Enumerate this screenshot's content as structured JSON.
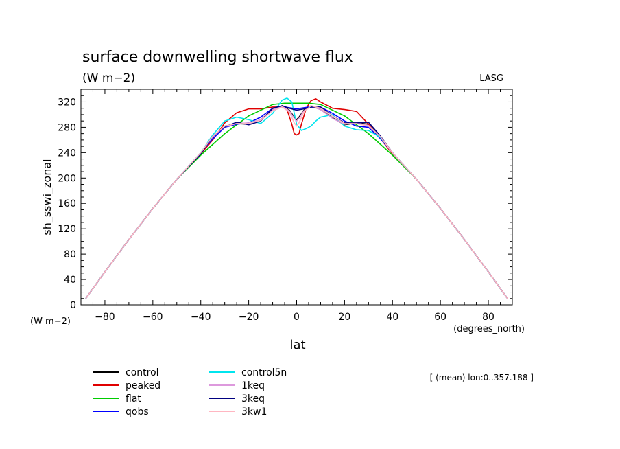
{
  "chart_data": {
    "type": "line",
    "title": "surface downwelling shortwave flux",
    "units": "(W m−2)",
    "source_label": "LASG",
    "xlabel": "lat",
    "ylabel": "sh_sswi_zonal",
    "y_units": "(W m−2)",
    "x_units": "(degrees_north)",
    "note": "[ (mean) lon:0..357.188 ]",
    "xlim": [
      -90,
      90
    ],
    "ylim": [
      0,
      340
    ],
    "x_ticks": [
      -80,
      -60,
      -40,
      -20,
      0,
      20,
      40,
      60,
      80
    ],
    "x_tick_labels": [
      "−80",
      "−60",
      "−40",
      "−20",
      "0",
      "20",
      "40",
      "60",
      "80"
    ],
    "y_ticks": [
      0,
      40,
      80,
      120,
      160,
      200,
      240,
      280,
      320
    ],
    "y_tick_labels": [
      "0",
      "40",
      "80",
      "120",
      "160",
      "200",
      "240",
      "280",
      "320"
    ],
    "grid": false,
    "legend_position": "below",
    "series": [
      {
        "name": "control",
        "color": "#000000",
        "x": [
          -88,
          -80,
          -70,
          -60,
          -50,
          -40,
          -35,
          -30,
          -25,
          -20,
          -15,
          -10,
          -6,
          -3,
          -1,
          0,
          1,
          3,
          6,
          10,
          15,
          20,
          25,
          30,
          35,
          40,
          50,
          60,
          70,
          80,
          88
        ],
        "y": [
          10,
          52,
          103,
          152,
          198,
          238,
          265,
          282,
          286,
          285,
          292,
          308,
          314,
          307,
          296,
          292,
          296,
          307,
          314,
          308,
          295,
          284,
          287,
          285,
          265,
          238,
          198,
          152,
          103,
          52,
          10
        ]
      },
      {
        "name": "peaked",
        "color": "#e00000",
        "x": [
          -88,
          -80,
          -70,
          -60,
          -50,
          -40,
          -35,
          -30,
          -25,
          -20,
          -15,
          -10,
          -6,
          -4,
          -2,
          -1,
          0,
          1,
          2,
          4,
          6,
          8,
          10,
          15,
          20,
          25,
          30,
          35,
          40,
          50,
          60,
          70,
          80,
          88
        ],
        "y": [
          10,
          52,
          103,
          152,
          198,
          238,
          260,
          287,
          303,
          309,
          309,
          312,
          312,
          308,
          285,
          270,
          268,
          270,
          285,
          310,
          322,
          325,
          320,
          310,
          308,
          305,
          285,
          262,
          238,
          198,
          152,
          103,
          52,
          10
        ]
      },
      {
        "name": "flat",
        "color": "#00cc00",
        "x": [
          -88,
          -80,
          -70,
          -60,
          -50,
          -40,
          -30,
          -20,
          -10,
          -5,
          0,
          5,
          10,
          20,
          30,
          40,
          50,
          60,
          70,
          80,
          88
        ],
        "y": [
          10,
          52,
          103,
          152,
          198,
          236,
          270,
          298,
          316,
          318,
          318,
          318,
          316,
          298,
          270,
          236,
          198,
          152,
          103,
          52,
          10
        ]
      },
      {
        "name": "qobs",
        "color": "#0000ff",
        "x": [
          -88,
          -80,
          -70,
          -60,
          -50,
          -40,
          -35,
          -30,
          -25,
          -20,
          -15,
          -10,
          -5,
          0,
          5,
          10,
          15,
          20,
          25,
          30,
          35,
          40,
          50,
          60,
          70,
          80,
          88
        ],
        "y": [
          10,
          52,
          103,
          152,
          198,
          240,
          262,
          280,
          285,
          287,
          296,
          310,
          312,
          309,
          312,
          312,
          302,
          290,
          282,
          280,
          262,
          240,
          198,
          152,
          103,
          52,
          10
        ]
      },
      {
        "name": "control5n",
        "color": "#00e5ee",
        "x": [
          -88,
          -80,
          -70,
          -60,
          -50,
          -40,
          -35,
          -30,
          -25,
          -20,
          -15,
          -10,
          -6,
          -4,
          -2,
          0,
          2,
          4,
          6,
          8,
          10,
          15,
          20,
          25,
          30,
          35,
          40,
          50,
          60,
          70,
          80,
          88
        ],
        "y": [
          10,
          52,
          103,
          152,
          198,
          240,
          268,
          290,
          296,
          292,
          286,
          302,
          323,
          326,
          320,
          285,
          275,
          278,
          282,
          290,
          296,
          300,
          282,
          276,
          275,
          264,
          240,
          198,
          152,
          103,
          52,
          10
        ]
      },
      {
        "name": "1keq",
        "color": "#dd99dd",
        "x": [
          -88,
          -80,
          -70,
          -60,
          -50,
          -40,
          -35,
          -30,
          -25,
          -20,
          -15,
          -10,
          -6,
          -3,
          -1,
          0,
          1,
          3,
          6,
          10,
          15,
          20,
          25,
          30,
          35,
          40,
          50,
          60,
          70,
          80,
          88
        ],
        "y": [
          10,
          52,
          103,
          152,
          198,
          239,
          265,
          281,
          286,
          287,
          292,
          308,
          313,
          306,
          294,
          290,
          294,
          306,
          313,
          308,
          294,
          285,
          287,
          283,
          265,
          239,
          198,
          152,
          103,
          52,
          10
        ]
      },
      {
        "name": "3keq",
        "color": "#000080",
        "x": [
          -88,
          -80,
          -70,
          -60,
          -50,
          -40,
          -35,
          -30,
          -25,
          -20,
          -15,
          -10,
          -6,
          -3,
          0,
          3,
          6,
          10,
          15,
          20,
          25,
          30,
          35,
          40,
          50,
          60,
          70,
          80,
          88
        ],
        "y": [
          10,
          52,
          103,
          152,
          198,
          238,
          266,
          281,
          288,
          284,
          290,
          310,
          314,
          310,
          307,
          309,
          312,
          312,
          298,
          287,
          287,
          288,
          266,
          240,
          198,
          152,
          103,
          52,
          10
        ]
      },
      {
        "name": "3kw1",
        "color": "#ffb6c1",
        "x": [
          -88,
          -80,
          -70,
          -60,
          -50,
          -40,
          -35,
          -30,
          -25,
          -20,
          -15,
          -10,
          -6,
          -3,
          -1,
          0,
          1,
          3,
          6,
          10,
          15,
          20,
          25,
          30,
          35,
          40,
          50,
          60,
          70,
          80,
          88
        ],
        "y": [
          10,
          52,
          103,
          152,
          198,
          240,
          266,
          282,
          286,
          286,
          291,
          306,
          312,
          304,
          287,
          282,
          287,
          304,
          314,
          310,
          298,
          286,
          286,
          282,
          265,
          240,
          198,
          152,
          103,
          52,
          10
        ]
      }
    ]
  }
}
